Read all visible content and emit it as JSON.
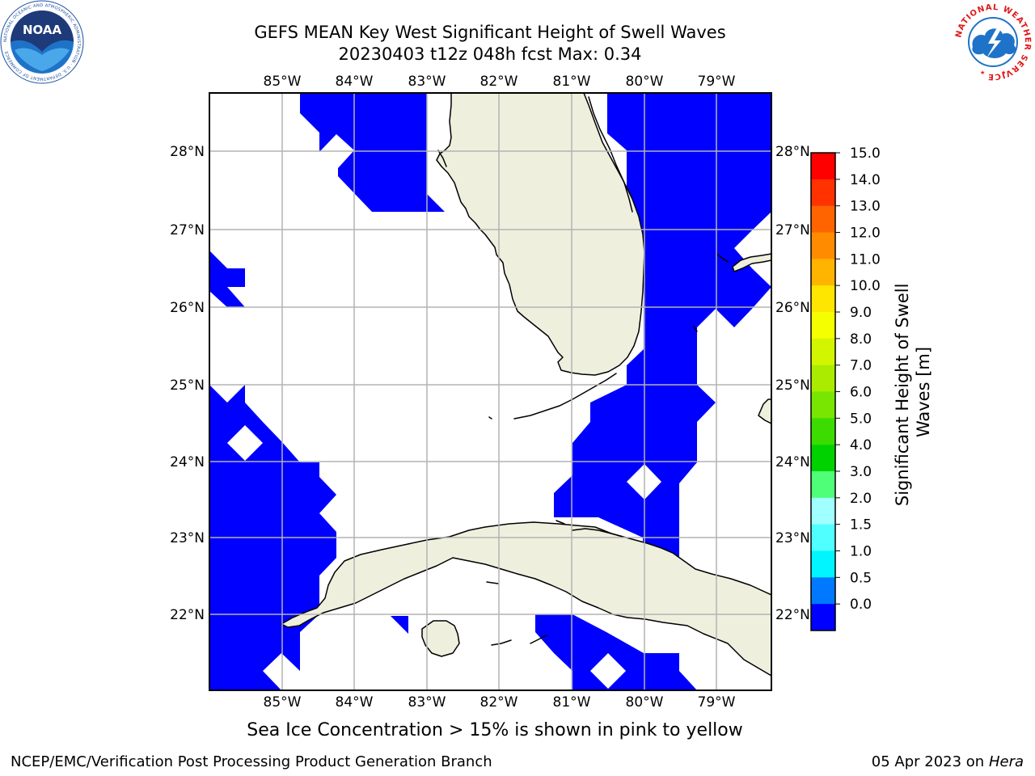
{
  "header": {
    "title_line1": "GEFS MEAN Key West Significant Height of Swell Waves",
    "title_line2": "20230403 t12z 048h fcst   Max: 0.34",
    "left_logo": {
      "name": "noaa-logo",
      "text": "NOAA",
      "ring_text": "NATIONAL OCEANIC AND ATMOSPHERIC ADMINISTRATION · U.S. DEPARTMENT OF COMMERCE"
    },
    "right_logo": {
      "name": "nws-logo",
      "ring_text": "NATIONAL WEATHER SERVICE"
    }
  },
  "map": {
    "lon_labels": [
      "85°W",
      "84°W",
      "83°W",
      "82°W",
      "81°W",
      "80°W",
      "79°W"
    ],
    "lat_labels": [
      "28°N",
      "27°N",
      "26°N",
      "25°N",
      "24°N",
      "23°N",
      "22°N"
    ],
    "colors": {
      "ocean": "#ffffff",
      "land": "#efefde",
      "swell_low": "#0000ff",
      "grid": "#b4b4b4"
    }
  },
  "colorbar": {
    "label": "Significant Height of Swell Waves [m]",
    "ticks": [
      "15.0",
      "14.0",
      "13.0",
      "12.0",
      "11.0",
      "10.0",
      "9.0",
      "8.0",
      "7.0",
      "6.0",
      "5.0",
      "4.0",
      "3.0",
      "2.0",
      "1.5",
      "1.0",
      "0.5",
      "0.0"
    ],
    "colors_top_to_bottom": [
      "#ff0000",
      "#ff3200",
      "#ff6400",
      "#ff8c00",
      "#ffb400",
      "#ffe600",
      "#f5ff00",
      "#d2f500",
      "#aaeb00",
      "#78e600",
      "#3cdc00",
      "#00d200",
      "#50ff78",
      "#a0ffff",
      "#50ffff",
      "#00f5ff",
      "#0078ff",
      "#0000ff"
    ]
  },
  "footer": {
    "subtitle": "Sea Ice Concentration > 15% is shown in pink to yellow",
    "left": "NCEP/EMC/Verification Post Processing Product Generation Branch",
    "right_date": "05 Apr 2023 on ",
    "right_host": "Hera"
  }
}
